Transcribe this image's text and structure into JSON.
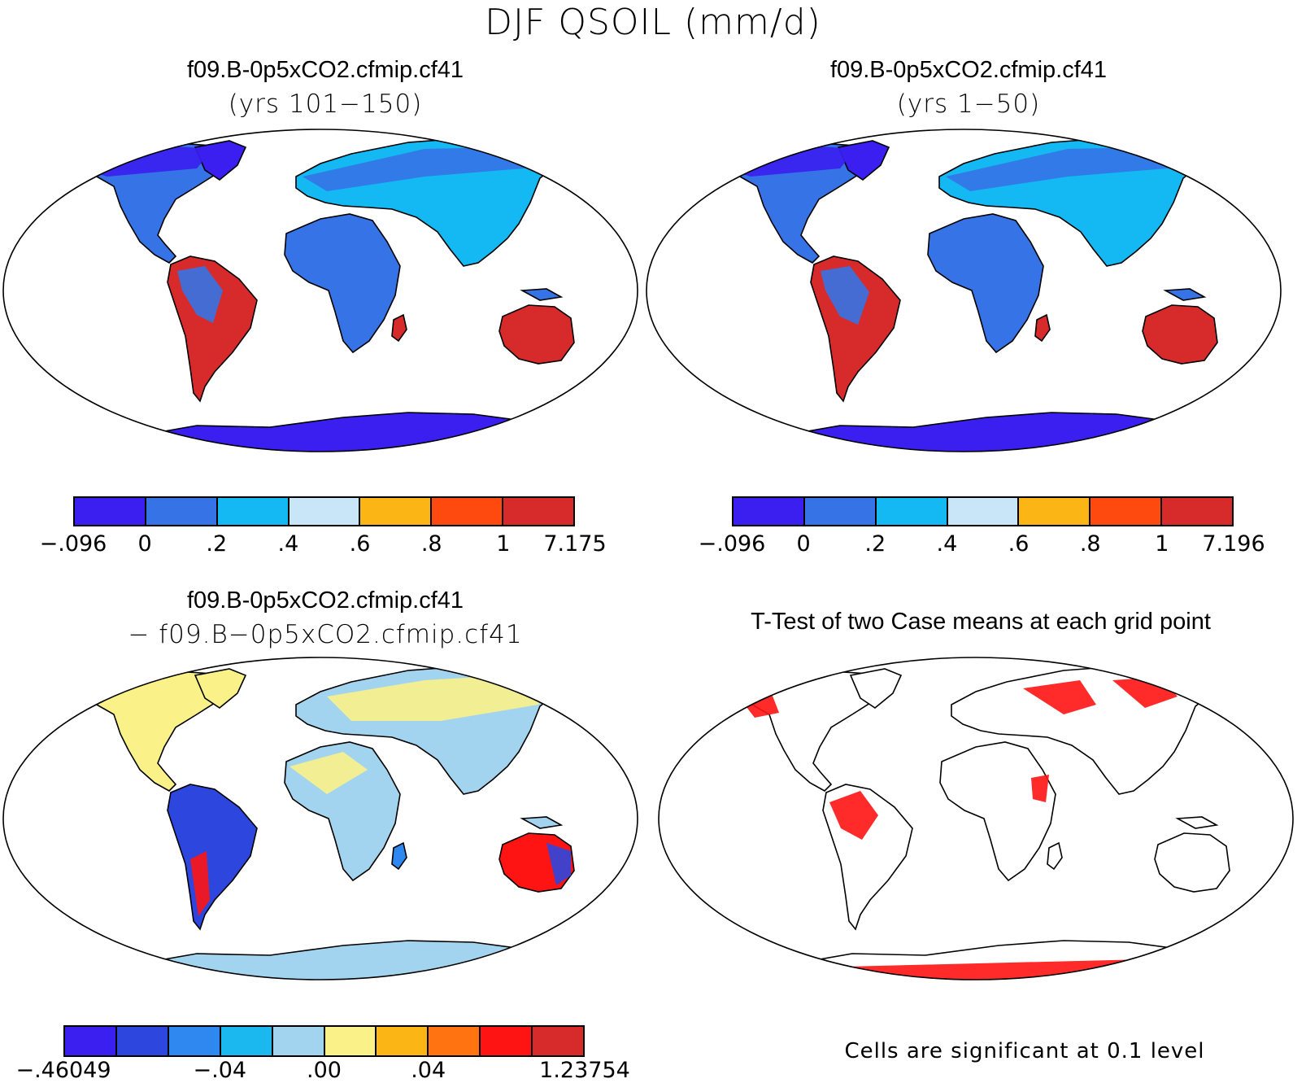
{
  "figure": {
    "title": "DJF QSOIL (mm/d)",
    "colors": {
      "qsoil": [
        "#3a1ff0",
        "#3573e6",
        "#14b8f2",
        "#c8e6f8",
        "#fbb515",
        "#ff4a0f",
        "#d72b2b"
      ],
      "diff": [
        "#3a1ff0",
        "#2d46dd",
        "#2f88f0",
        "#1bb8f0",
        "#a3d4ef",
        "#fbf189",
        "#fbb515",
        "#ff7310",
        "#ff1414",
        "#d72b2b"
      ],
      "significant": "#ff1414",
      "coastline": "#000000"
    }
  },
  "panels": [
    {
      "id": "case1",
      "title": "f09.B-0p5xCO2.cfmip.cf41",
      "subtitle": "(yrs 101−150)",
      "colorbar": {
        "labels": [
          "−.096",
          "0",
          ".2",
          ".4",
          ".6",
          ".8",
          "1",
          "7.175"
        ]
      }
    },
    {
      "id": "case2",
      "title": "f09.B-0p5xCO2.cfmip.cf41",
      "subtitle": "(yrs 1−50)",
      "colorbar": {
        "labels": [
          "−.096",
          "0",
          ".2",
          ".4",
          ".6",
          ".8",
          "1",
          "7.196"
        ]
      }
    },
    {
      "id": "difference",
      "title": "f09.B-0p5xCO2.cfmip.cf41",
      "subtitle": "− f09.B−0p5xCO2.cfmip.cf41",
      "colorbar": {
        "labels": [
          "−.46049",
          "−.04",
          ".00",
          ".04",
          "1.23754"
        ]
      }
    },
    {
      "id": "ttest",
      "title": "T-Test of two Case means at each grid point",
      "note": "Cells are significant at 0.1 level"
    }
  ]
}
